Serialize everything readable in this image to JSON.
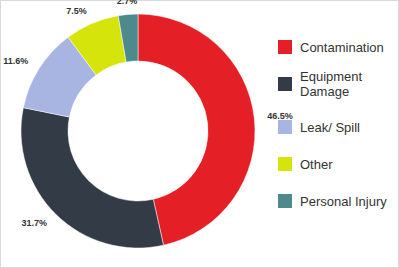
{
  "chart_data": {
    "type": "donut",
    "categories": [
      "Contamination",
      "Equipment Damage",
      "Leak/ Spill",
      "Other",
      "Personal Injury"
    ],
    "values": [
      46.5,
      31.7,
      11.6,
      7.5,
      2.7
    ],
    "value_labels": [
      "46.5%",
      "31.7%",
      "11.6%",
      "7.5%",
      "2.7%"
    ],
    "colors": [
      "#e41f26",
      "#333c46",
      "#a8b4e2",
      "#d5e40a",
      "#4e8a8c"
    ],
    "data_labels": true,
    "legend": "right"
  }
}
